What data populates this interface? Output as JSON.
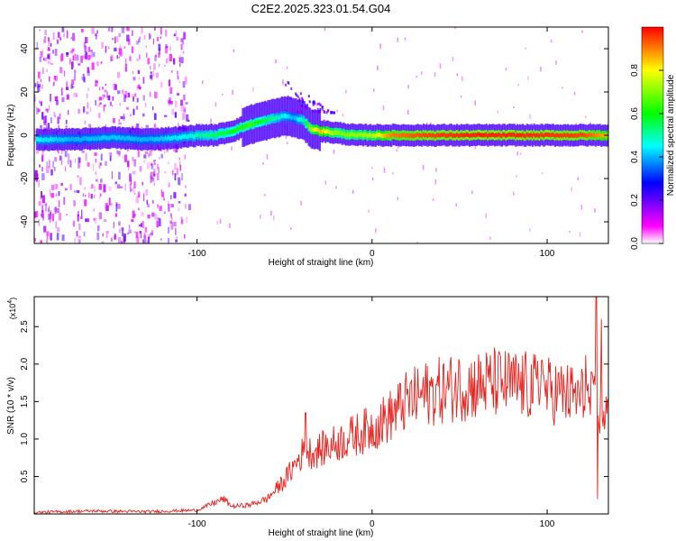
{
  "title": "C2E2.2025.323.01.54.G04",
  "chart_data": [
    {
      "type": "heatmap",
      "name": "spectrogram",
      "xlabel": "Height of straight line (km)",
      "ylabel": "Frequency (Hz)",
      "xlim": [
        -193,
        135
      ],
      "ylim": [
        -50,
        50
      ],
      "x_ticks": [
        -100,
        0,
        100
      ],
      "x_tick_labels": [
        "-100",
        "0",
        "100"
      ],
      "y_ticks": [
        -40,
        -20,
        0,
        20,
        40
      ],
      "y_tick_labels": [
        "-40",
        "-20",
        "0",
        "20",
        "40"
      ],
      "colorbar": {
        "label": "Normalized spectral amplitude",
        "range": [
          0.0,
          1.0
        ],
        "ticks": [
          0.0,
          0.2,
          0.4,
          0.6,
          0.8
        ],
        "tick_labels": [
          "0.0",
          "0.2",
          "0.4",
          "0.6",
          "0.8"
        ],
        "colors": [
          "#ffffff",
          "#ff00ff",
          "#0000ff",
          "#00ffff",
          "#00ff00",
          "#ffff00",
          "#ff0000"
        ]
      },
      "ridge": {
        "x": [
          -190,
          -170,
          -150,
          -130,
          -110,
          -100,
          -90,
          -80,
          -70,
          -60,
          -55,
          -50,
          -45,
          -40,
          -35,
          -30,
          -20,
          -10,
          0,
          10,
          30,
          60,
          90,
          120,
          135
        ],
        "freq": [
          -2,
          -2,
          -1,
          -2,
          -1,
          0,
          0,
          2,
          5,
          7,
          8,
          9,
          8,
          7,
          3,
          2,
          1,
          0,
          0,
          0,
          0,
          0,
          0,
          0,
          0
        ],
        "amp": [
          0.45,
          0.4,
          0.42,
          0.4,
          0.45,
          0.5,
          0.55,
          0.6,
          0.65,
          0.55,
          0.5,
          0.45,
          0.4,
          0.5,
          0.75,
          0.85,
          0.7,
          0.72,
          0.75,
          0.9,
          0.95,
          0.98,
          0.97,
          0.95,
          0.85
        ]
      },
      "noise_extent_x": [
        -193,
        -105
      ]
    },
    {
      "type": "line",
      "name": "snr",
      "xlabel": "Height of straight line (km)",
      "ylabel": "SNR (10 * v/v)",
      "y_scale_label": "(x10",
      "y_scale_exp": "4",
      "y_scale_suffix": ")",
      "xlim": [
        -193,
        135
      ],
      "ylim": [
        0,
        2.9
      ],
      "x_ticks": [
        -100,
        0,
        100
      ],
      "x_tick_labels": [
        "-100",
        "0",
        "100"
      ],
      "y_ticks": [
        0.5,
        1.0,
        1.5,
        2.0,
        2.5
      ],
      "y_tick_labels": [
        "0.5",
        "1.0",
        "1.5",
        "2.0",
        "2.5"
      ],
      "color": "#e8231e",
      "envelope_x": [
        -193,
        -160,
        -130,
        -100,
        -90,
        -85,
        -80,
        -70,
        -60,
        -50,
        -40,
        -30,
        -20,
        -10,
        0,
        10,
        20,
        30,
        40,
        50,
        60,
        70,
        80,
        90,
        100,
        110,
        120,
        125,
        130,
        135
      ],
      "envelope_y": [
        0.02,
        0.04,
        0.03,
        0.05,
        0.15,
        0.2,
        0.1,
        0.12,
        0.2,
        0.45,
        0.8,
        0.85,
        0.95,
        1.05,
        1.15,
        1.3,
        1.5,
        1.6,
        1.65,
        1.7,
        1.72,
        1.75,
        1.72,
        1.7,
        1.65,
        1.6,
        1.55,
        1.5,
        1.4,
        1.35
      ],
      "peaks": [
        {
          "x": -38,
          "y": 1.35
        },
        {
          "x": 50,
          "y": 2.02
        },
        {
          "x": 97,
          "y": 2.05
        },
        {
          "x": 122,
          "y": 2.12
        },
        {
          "x": 128,
          "y": 2.9
        },
        {
          "x": 128.6,
          "y": 0.2
        },
        {
          "x": 131,
          "y": 2.6
        }
      ]
    }
  ]
}
